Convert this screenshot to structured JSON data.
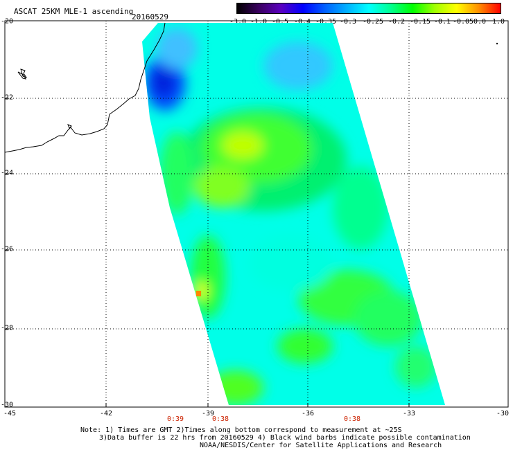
{
  "header": {
    "title": "ASCAT 25KM MLE-1 ascending",
    "date": "20160529"
  },
  "colorbar": {
    "labels": [
      "-3.0",
      "-1.0",
      "-0.5",
      "-0.4",
      "-0.35",
      "-0.3",
      "-0.25",
      "-0.2",
      "-0.15",
      "-0.1",
      "-0.05",
      "0.0",
      "1.0"
    ],
    "colors": [
      "#000000",
      "#3a0060",
      "#5a00c0",
      "#0000ff",
      "#0060ff",
      "#00b0ff",
      "#00ffff",
      "#00ff90",
      "#00ff00",
      "#a0ff00",
      "#ffff00",
      "#ff9000",
      "#ff0000"
    ]
  },
  "axes": {
    "lat_labels": [
      "-20",
      "-22",
      "-24",
      "-26",
      "-28",
      "-30"
    ],
    "lon_labels": [
      "-45",
      "-42",
      "-39",
      "-36",
      "-33",
      "-30"
    ]
  },
  "time_labels": [
    "0:39",
    "0:38",
    "0:38"
  ],
  "notes": {
    "line1": "Note: 1) Times are GMT 2)Times along bottom correspond to measurement at ~25S",
    "line2": "3)Data buffer is 22 hrs from 20160529 4) Black wind barbs indicate possible contamination",
    "line3": "NOAA/NESDIS/Center for Satellite Applications and Research"
  }
}
